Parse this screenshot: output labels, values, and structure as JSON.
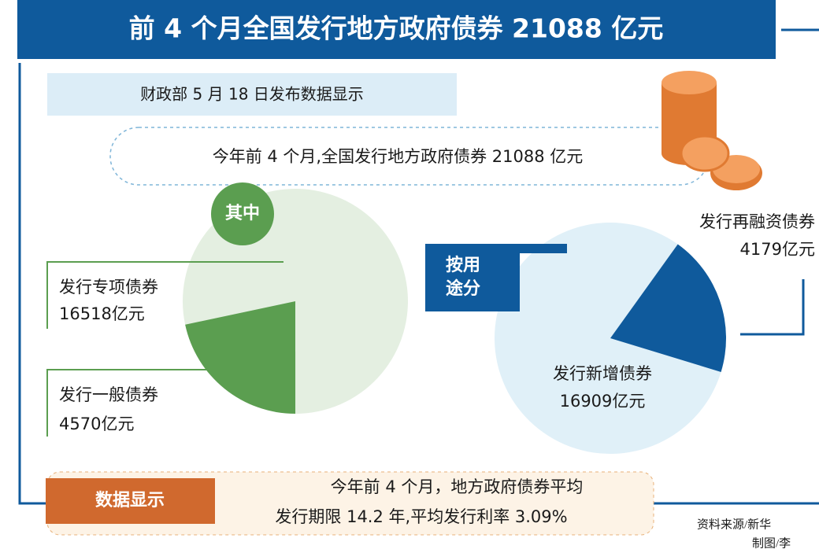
{
  "header": {
    "title": "前 4 个月全国发行地方政府债券 21088 亿元"
  },
  "intro": {
    "source_note": "财政部 5 月 18 日发布数据显示",
    "summary": "今年前 4 个月,全国发行地方政府债券 21088 亿元"
  },
  "chart_data": [
    {
      "type": "pie",
      "title": "其中",
      "categories": [
        "发行专项债券",
        "发行一般债券"
      ],
      "values": [
        16518,
        4570
      ],
      "value_labels": [
        "16518亿元",
        "4570亿元"
      ],
      "colors": [
        "#e4efe1",
        "#5b9e50"
      ]
    },
    {
      "type": "pie",
      "title": "按用途分",
      "categories": [
        "发行新增债券",
        "发行再融资债券"
      ],
      "values": [
        16909,
        4179
      ],
      "value_labels": [
        "16909亿元",
        "4179亿元"
      ],
      "colors": [
        "#e0f0f8",
        "#0f5a9c"
      ]
    }
  ],
  "footer": {
    "badge": "数据显示",
    "lines": [
      "今年前 4 个月，地方政府债券平均",
      "发行期限 14.2 年,平均发行利率 3.09%"
    ],
    "credits": [
      "资料来源/新华",
      "制图/李"
    ]
  }
}
